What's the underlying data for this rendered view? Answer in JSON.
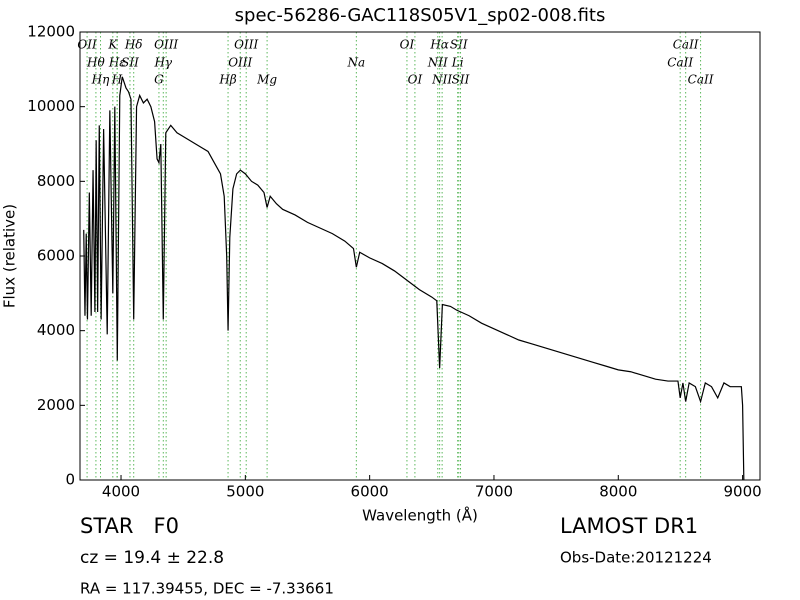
{
  "chart_data": {
    "type": "line",
    "title": "spec-56286-GAC118S05V1_sp02-008.fits",
    "x_label": "Wavelength (Å)",
    "y_label": "Flux (relative)",
    "xlim": [
      3670,
      9140
    ],
    "ylim": [
      0,
      12000
    ],
    "xticks": [
      4000,
      5000,
      6000,
      7000,
      8000,
      9000
    ],
    "yticks": [
      0,
      2000,
      4000,
      6000,
      8000,
      10000,
      12000
    ],
    "color": "#000000",
    "line_color": "#5cb85c",
    "x": [
      3700,
      3710,
      3720,
      3730,
      3745,
      3760,
      3775,
      3790,
      3800,
      3812,
      3825,
      3840,
      3860,
      3889,
      3910,
      3934,
      3950,
      3970,
      3990,
      4010,
      4040,
      4060,
      4080,
      4102,
      4125,
      4150,
      4180,
      4210,
      4240,
      4270,
      4290,
      4305,
      4320,
      4340,
      4360,
      4400,
      4450,
      4500,
      4550,
      4600,
      4650,
      4700,
      4750,
      4800,
      4830,
      4850,
      4861,
      4875,
      4900,
      4930,
      4960,
      5000,
      5050,
      5100,
      5150,
      5175,
      5200,
      5250,
      5300,
      5400,
      5500,
      5600,
      5700,
      5800,
      5870,
      5893,
      5920,
      6000,
      6100,
      6200,
      6300,
      6400,
      6500,
      6540,
      6563,
      6585,
      6650,
      6700,
      6800,
      6900,
      7000,
      7100,
      7200,
      7300,
      7400,
      7500,
      7600,
      7700,
      7800,
      7900,
      8000,
      8100,
      8200,
      8300,
      8400,
      8480,
      8498,
      8520,
      8542,
      8570,
      8620,
      8662,
      8700,
      8750,
      8800,
      8850,
      8900,
      8950,
      8990,
      9000,
      9010
    ],
    "values": [
      6700,
      4400,
      6600,
      4300,
      7700,
      4400,
      8300,
      4500,
      9100,
      4500,
      9500,
      4300,
      9400,
      3900,
      9900,
      5000,
      10000,
      3200,
      10300,
      10800,
      10500,
      10400,
      10200,
      4300,
      10000,
      10300,
      10100,
      10200,
      10000,
      9600,
      8600,
      8500,
      9000,
      4300,
      9300,
      9500,
      9300,
      9200,
      9100,
      9000,
      8900,
      8800,
      8500,
      8200,
      7600,
      6000,
      4000,
      6500,
      7800,
      8200,
      8300,
      8200,
      8000,
      7900,
      7700,
      7300,
      7600,
      7400,
      7250,
      7100,
      6900,
      6750,
      6600,
      6400,
      6200,
      5700,
      6100,
      5950,
      5800,
      5600,
      5350,
      5100,
      4900,
      4800,
      3000,
      4700,
      4650,
      4550,
      4400,
      4200,
      4050,
      3900,
      3750,
      3650,
      3550,
      3450,
      3350,
      3250,
      3150,
      3050,
      2950,
      2900,
      2800,
      2700,
      2650,
      2650,
      2200,
      2600,
      2100,
      2600,
      2500,
      2100,
      2600,
      2500,
      2200,
      2600,
      2500,
      2500,
      2500,
      2000,
      0
    ],
    "spectral_lines": [
      {
        "name": "OII",
        "wavelength": 3727
      },
      {
        "name": "Hθ",
        "wavelength": 3798
      },
      {
        "name": "Hη",
        "wavelength": 3835
      },
      {
        "name": "K",
        "wavelength": 3934
      },
      {
        "name": "Hε",
        "wavelength": 3970
      },
      {
        "name": "H",
        "wavelength": 3968
      },
      {
        "name": "Hδ",
        "wavelength": 4102
      },
      {
        "name": "SII",
        "wavelength": 4072
      },
      {
        "name": "G",
        "wavelength": 4305
      },
      {
        "name": "OIII",
        "wavelength": 4363
      },
      {
        "name": "Hγ",
        "wavelength": 4340
      },
      {
        "name": "Hβ",
        "wavelength": 4861
      },
      {
        "name": "OIII",
        "wavelength": 5007
      },
      {
        "name": "OIII",
        "wavelength": 4959
      },
      {
        "name": "Mg",
        "wavelength": 5175
      },
      {
        "name": "OI",
        "wavelength": 6300
      },
      {
        "name": "Na",
        "wavelength": 5893
      },
      {
        "name": "OI",
        "wavelength": 6364
      },
      {
        "name": "Hα",
        "wavelength": 6563
      },
      {
        "name": "NII",
        "wavelength": 6548
      },
      {
        "name": "NII",
        "wavelength": 6583
      },
      {
        "name": "SII",
        "wavelength": 6717
      },
      {
        "name": "Li",
        "wavelength": 6708
      },
      {
        "name": "SII",
        "wavelength": 6731
      },
      {
        "name": "CaII",
        "wavelength": 8542
      },
      {
        "name": "CaII",
        "wavelength": 8498
      },
      {
        "name": "CaII",
        "wavelength": 8662
      }
    ],
    "annotations": [
      "STAR   F0",
      "cz = 19.4 ± 22.8",
      "RA = 117.39455, DEC = -7.33661",
      "LAMOST DR1",
      "Obs-Date:20121224"
    ]
  }
}
